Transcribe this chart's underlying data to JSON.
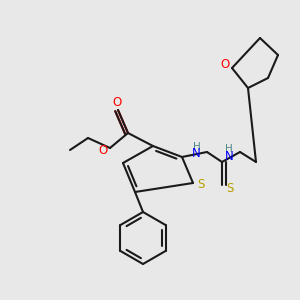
{
  "bg_color": "#e8e8e8",
  "bond_color": "#1a1a1a",
  "colors": {
    "S": "#b8a000",
    "O": "#ff0000",
    "N": "#0000ff",
    "H": "#4a8888",
    "C": "#1a1a1a"
  },
  "figsize": [
    3.0,
    3.0
  ],
  "dpi": 100
}
